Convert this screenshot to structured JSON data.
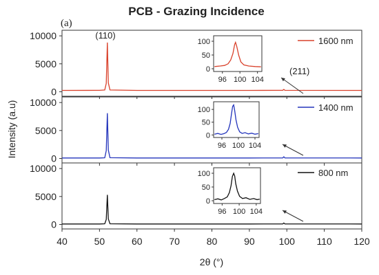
{
  "chart_data": {
    "type": "line",
    "title": "PCB - Grazing Incidence",
    "panel_label": "(a)",
    "xlabel": "2θ (°)",
    "ylabel": "Intensity (a.u)",
    "xlim": [
      40,
      120
    ],
    "x_ticks": [
      40,
      50,
      60,
      70,
      80,
      90,
      100,
      110,
      120
    ],
    "ylim": [
      -800,
      11000
    ],
    "y_ticks": [
      0,
      5000,
      10000
    ],
    "grid": false,
    "legend_position": "top-right of each panel",
    "peak_labels": [
      "(110)",
      "(211)"
    ],
    "series": [
      {
        "name": "1600 nm",
        "color": "#d9402a",
        "points": [
          [
            40,
            250
          ],
          [
            50,
            260
          ],
          [
            51.4,
            320
          ],
          [
            51.8,
            1500
          ],
          [
            52.1,
            8800
          ],
          [
            52.35,
            1600
          ],
          [
            52.8,
            320
          ],
          [
            60,
            250
          ],
          [
            90,
            250
          ],
          [
            98.9,
            270
          ],
          [
            99.2,
            420
          ],
          [
            99.5,
            260
          ],
          [
            120,
            250
          ]
        ],
        "inset": {
          "xlim": [
            94,
            105
          ],
          "x_ticks": [
            96,
            100,
            104
          ],
          "ylim": [
            -10,
            120
          ],
          "y_ticks": [
            0,
            50,
            100
          ],
          "points": [
            [
              94.2,
              8
            ],
            [
              95.5,
              10
            ],
            [
              96.5,
              12
            ],
            [
              97.3,
              18
            ],
            [
              97.9,
              32
            ],
            [
              98.4,
              55
            ],
            [
              98.8,
              88
            ],
            [
              99.0,
              96
            ],
            [
              99.3,
              80
            ],
            [
              99.7,
              50
            ],
            [
              100.2,
              25
            ],
            [
              100.9,
              14
            ],
            [
              102,
              10
            ],
            [
              103.5,
              8
            ],
            [
              104.8,
              7
            ]
          ]
        }
      },
      {
        "name": "1400 nm",
        "color": "#2233bb",
        "points": [
          [
            40,
            80
          ],
          [
            50,
            90
          ],
          [
            51.4,
            120
          ],
          [
            51.8,
            1400
          ],
          [
            52.1,
            8100
          ],
          [
            52.35,
            1500
          ],
          [
            52.8,
            130
          ],
          [
            60,
            80
          ],
          [
            90,
            80
          ],
          [
            98.9,
            100
          ],
          [
            99.2,
            300
          ],
          [
            99.5,
            100
          ],
          [
            120,
            80
          ]
        ],
        "inset": {
          "xlim": [
            94,
            105
          ],
          "x_ticks": [
            96,
            100,
            104
          ],
          "ylim": [
            -10,
            130
          ],
          "y_ticks": [
            0,
            50,
            100
          ],
          "points": [
            [
              94.2,
              3
            ],
            [
              95.0,
              6
            ],
            [
              95.8,
              2
            ],
            [
              96.5,
              5
            ],
            [
              97.1,
              10
            ],
            [
              97.6,
              22
            ],
            [
              98.0,
              45
            ],
            [
              98.3,
              80
            ],
            [
              98.6,
              112
            ],
            [
              98.85,
              118
            ],
            [
              99.1,
              95
            ],
            [
              99.4,
              60
            ],
            [
              99.8,
              30
            ],
            [
              100.3,
              12
            ],
            [
              100.9,
              6
            ],
            [
              101.6,
              9
            ],
            [
              102.4,
              4
            ],
            [
              103.2,
              7
            ],
            [
              104.0,
              3
            ],
            [
              104.8,
              5
            ]
          ]
        }
      },
      {
        "name": "800 nm",
        "color": "#111111",
        "points": [
          [
            40,
            80
          ],
          [
            50,
            90
          ],
          [
            51.4,
            120
          ],
          [
            51.8,
            900
          ],
          [
            52.1,
            5300
          ],
          [
            52.35,
            1000
          ],
          [
            52.8,
            120
          ],
          [
            60,
            80
          ],
          [
            90,
            80
          ],
          [
            98.9,
            95
          ],
          [
            99.2,
            260
          ],
          [
            99.5,
            95
          ],
          [
            120,
            80
          ]
        ],
        "inset": {
          "xlim": [
            94,
            105
          ],
          "x_ticks": [
            96,
            100,
            104
          ],
          "ylim": [
            -10,
            120
          ],
          "y_ticks": [
            0,
            50,
            100
          ],
          "points": [
            [
              94.2,
              4
            ],
            [
              95.0,
              7
            ],
            [
              95.8,
              3
            ],
            [
              96.5,
              8
            ],
            [
              97.2,
              14
            ],
            [
              97.7,
              30
            ],
            [
              98.1,
              55
            ],
            [
              98.4,
              88
            ],
            [
              98.7,
              100
            ],
            [
              98.95,
              90
            ],
            [
              99.2,
              62
            ],
            [
              99.6,
              35
            ],
            [
              100.1,
              16
            ],
            [
              100.8,
              8
            ],
            [
              101.6,
              11
            ],
            [
              102.5,
              5
            ],
            [
              103.4,
              8
            ],
            [
              104.2,
              4
            ],
            [
              104.8,
              6
            ]
          ]
        }
      }
    ]
  }
}
